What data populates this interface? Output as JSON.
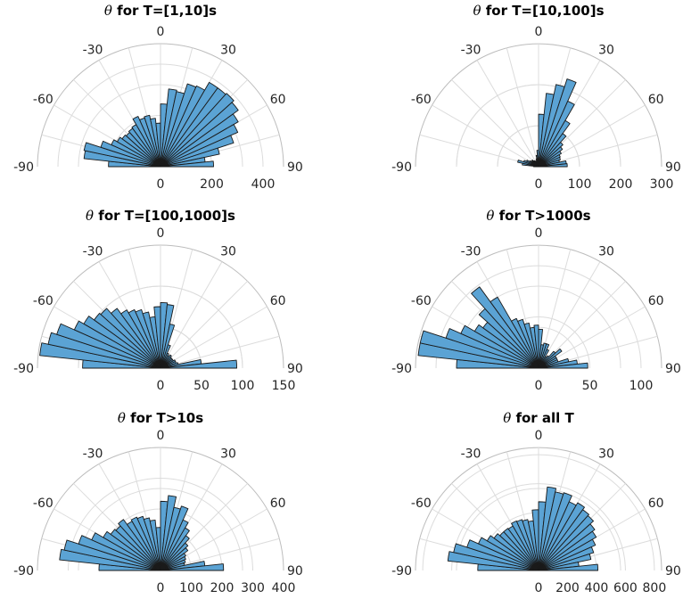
{
  "chart_data": [
    {
      "type": "polar-histogram",
      "title_symbol": "θ",
      "title": " for T=[1,10]s",
      "theta_range": [
        -90,
        90
      ],
      "theta_ticks": [
        "-90",
        "-60",
        "-30",
        "0",
        "30",
        "60",
        "90"
      ],
      "r_ticks": [
        "0",
        "200",
        "400"
      ],
      "r_tick_values": [
        0,
        200,
        400
      ],
      "rlim": [
        0,
        480
      ],
      "bin_width_deg": 6,
      "bin_centers": [
        -87,
        -81,
        -75,
        -69,
        -63,
        -57,
        -51,
        -45,
        -39,
        -33,
        -27,
        -21,
        -15,
        -9,
        -3,
        3,
        9,
        15,
        21,
        27,
        33,
        39,
        45,
        51,
        57,
        63,
        69,
        75,
        81,
        87
      ],
      "values": [
        203,
        300,
        305,
        245,
        210,
        195,
        185,
        180,
        185,
        190,
        215,
        200,
        205,
        190,
        170,
        245,
        305,
        300,
        340,
        345,
        380,
        380,
        385,
        375,
        350,
        330,
        300,
        235,
        175,
        207
      ],
      "color": "#5ba3d4"
    },
    {
      "type": "polar-histogram",
      "title_symbol": "θ",
      "title": " for T=[10,100]s",
      "theta_range": [
        -90,
        90
      ],
      "theta_ticks": [
        "-90",
        "-60",
        "-30",
        "0",
        "30",
        "60",
        "90"
      ],
      "r_ticks": [
        "0",
        "100",
        "200",
        "300"
      ],
      "r_tick_values": [
        0,
        100,
        200,
        300
      ],
      "rlim": [
        0,
        300
      ],
      "bin_width_deg": 6,
      "bin_centers": [
        -87,
        -81,
        -75,
        -69,
        -63,
        -57,
        -51,
        -45,
        -39,
        -33,
        -27,
        -21,
        -15,
        -9,
        -3,
        3,
        9,
        15,
        21,
        27,
        33,
        39,
        45,
        51,
        57,
        63,
        69,
        75,
        81,
        87
      ],
      "values": [
        12,
        40,
        52,
        38,
        32,
        25,
        20,
        22,
        18,
        17,
        14,
        15,
        20,
        28,
        40,
        128,
        180,
        205,
        225,
        175,
        130,
        100,
        80,
        72,
        64,
        58,
        56,
        52,
        68,
        70
      ],
      "color": "#5ba3d4"
    },
    {
      "type": "polar-histogram",
      "title_symbol": "θ",
      "title": " for T=[100,1000]s",
      "theta_range": [
        -90,
        90
      ],
      "theta_ticks": [
        "-90",
        "-60",
        "-30",
        "0",
        "30",
        "60",
        "90"
      ],
      "r_ticks": [
        "0",
        "50",
        "100",
        "150"
      ],
      "r_tick_values": [
        0,
        50,
        100,
        150
      ],
      "rlim": [
        0,
        150
      ],
      "bin_width_deg": 6,
      "bin_centers": [
        -87,
        -81,
        -75,
        -69,
        -63,
        -57,
        -51,
        -45,
        -39,
        -33,
        -27,
        -21,
        -15,
        -9,
        -3,
        3,
        9,
        15,
        21,
        27,
        33,
        39,
        45,
        51,
        57,
        63,
        69,
        75,
        81,
        87
      ],
      "values": [
        95,
        148,
        140,
        133,
        115,
        108,
        100,
        98,
        90,
        82,
        78,
        75,
        70,
        63,
        75,
        80,
        78,
        55,
        30,
        20,
        18,
        20,
        18,
        18,
        18,
        20,
        20,
        22,
        50,
        93
      ],
      "color": "#5ba3d4"
    },
    {
      "type": "polar-histogram",
      "title_symbol": "θ",
      "title": " for T>1000s",
      "theta_range": [
        -90,
        90
      ],
      "theta_ticks": [
        "-90",
        "-60",
        "-30",
        "0",
        "30",
        "60",
        "90"
      ],
      "r_ticks": [
        "0",
        "50",
        "100"
      ],
      "r_tick_values": [
        0,
        50,
        100
      ],
      "rlim": [
        0,
        120
      ],
      "bin_width_deg": 6,
      "bin_centers": [
        -87,
        -81,
        -75,
        -69,
        -63,
        -57,
        -51,
        -45,
        -39,
        -33,
        -27,
        -21,
        -15,
        -9,
        -3,
        3,
        9,
        15,
        21,
        27,
        33,
        39,
        45,
        51,
        57,
        63,
        69,
        75,
        81,
        87
      ],
      "values": [
        80,
        118,
        118,
        95,
        83,
        72,
        67,
        78,
        98,
        80,
        53,
        50,
        45,
        40,
        42,
        38,
        23,
        25,
        25,
        20,
        13,
        15,
        22,
        28,
        20,
        20,
        20,
        30,
        38,
        48
      ],
      "color": "#5ba3d4"
    },
    {
      "type": "polar-histogram",
      "title_symbol": "θ",
      "title": " for T>10s",
      "theta_range": [
        -90,
        90
      ],
      "theta_ticks": [
        "-90",
        "-60",
        "-30",
        "0",
        "30",
        "60",
        "90"
      ],
      "r_ticks": [
        "0",
        "100",
        "200",
        "300",
        "400"
      ],
      "r_tick_values": [
        0,
        100,
        200,
        300,
        400
      ],
      "rlim": [
        0,
        400
      ],
      "bin_width_deg": 6,
      "bin_centers": [
        -87,
        -81,
        -75,
        -69,
        -63,
        -57,
        -51,
        -45,
        -39,
        -33,
        -27,
        -21,
        -15,
        -9,
        -3,
        3,
        9,
        15,
        21,
        27,
        33,
        39,
        45,
        51,
        57,
        63,
        69,
        75,
        81,
        87
      ],
      "values": [
        200,
        330,
        320,
        280,
        245,
        215,
        200,
        195,
        205,
        185,
        190,
        185,
        175,
        165,
        140,
        225,
        245,
        210,
        220,
        180,
        160,
        140,
        120,
        110,
        95,
        90,
        85,
        80,
        145,
        205
      ],
      "color": "#5ba3d4"
    },
    {
      "type": "polar-histogram",
      "title_symbol": "θ",
      "title": " for all T",
      "theta_range": [
        -90,
        90
      ],
      "theta_ticks": [
        "-90",
        "-60",
        "-30",
        "0",
        "30",
        "60",
        "90"
      ],
      "r_ticks": [
        "0",
        "200",
        "400",
        "600",
        "800"
      ],
      "r_tick_values": [
        0,
        200,
        400,
        600,
        800
      ],
      "rlim": [
        0,
        850
      ],
      "bin_width_deg": 6,
      "bin_centers": [
        -87,
        -81,
        -75,
        -69,
        -63,
        -57,
        -51,
        -45,
        -39,
        -33,
        -27,
        -21,
        -15,
        -9,
        -3,
        3,
        9,
        15,
        21,
        27,
        33,
        39,
        45,
        51,
        57,
        63,
        69,
        75,
        81,
        87
      ],
      "values": [
        420,
        630,
        600,
        520,
        455,
        410,
        380,
        360,
        360,
        355,
        375,
        370,
        360,
        345,
        420,
        475,
        580,
        555,
        565,
        520,
        540,
        520,
        510,
        480,
        460,
        430,
        400,
        370,
        280,
        410
      ],
      "color": "#5ba3d4"
    }
  ]
}
